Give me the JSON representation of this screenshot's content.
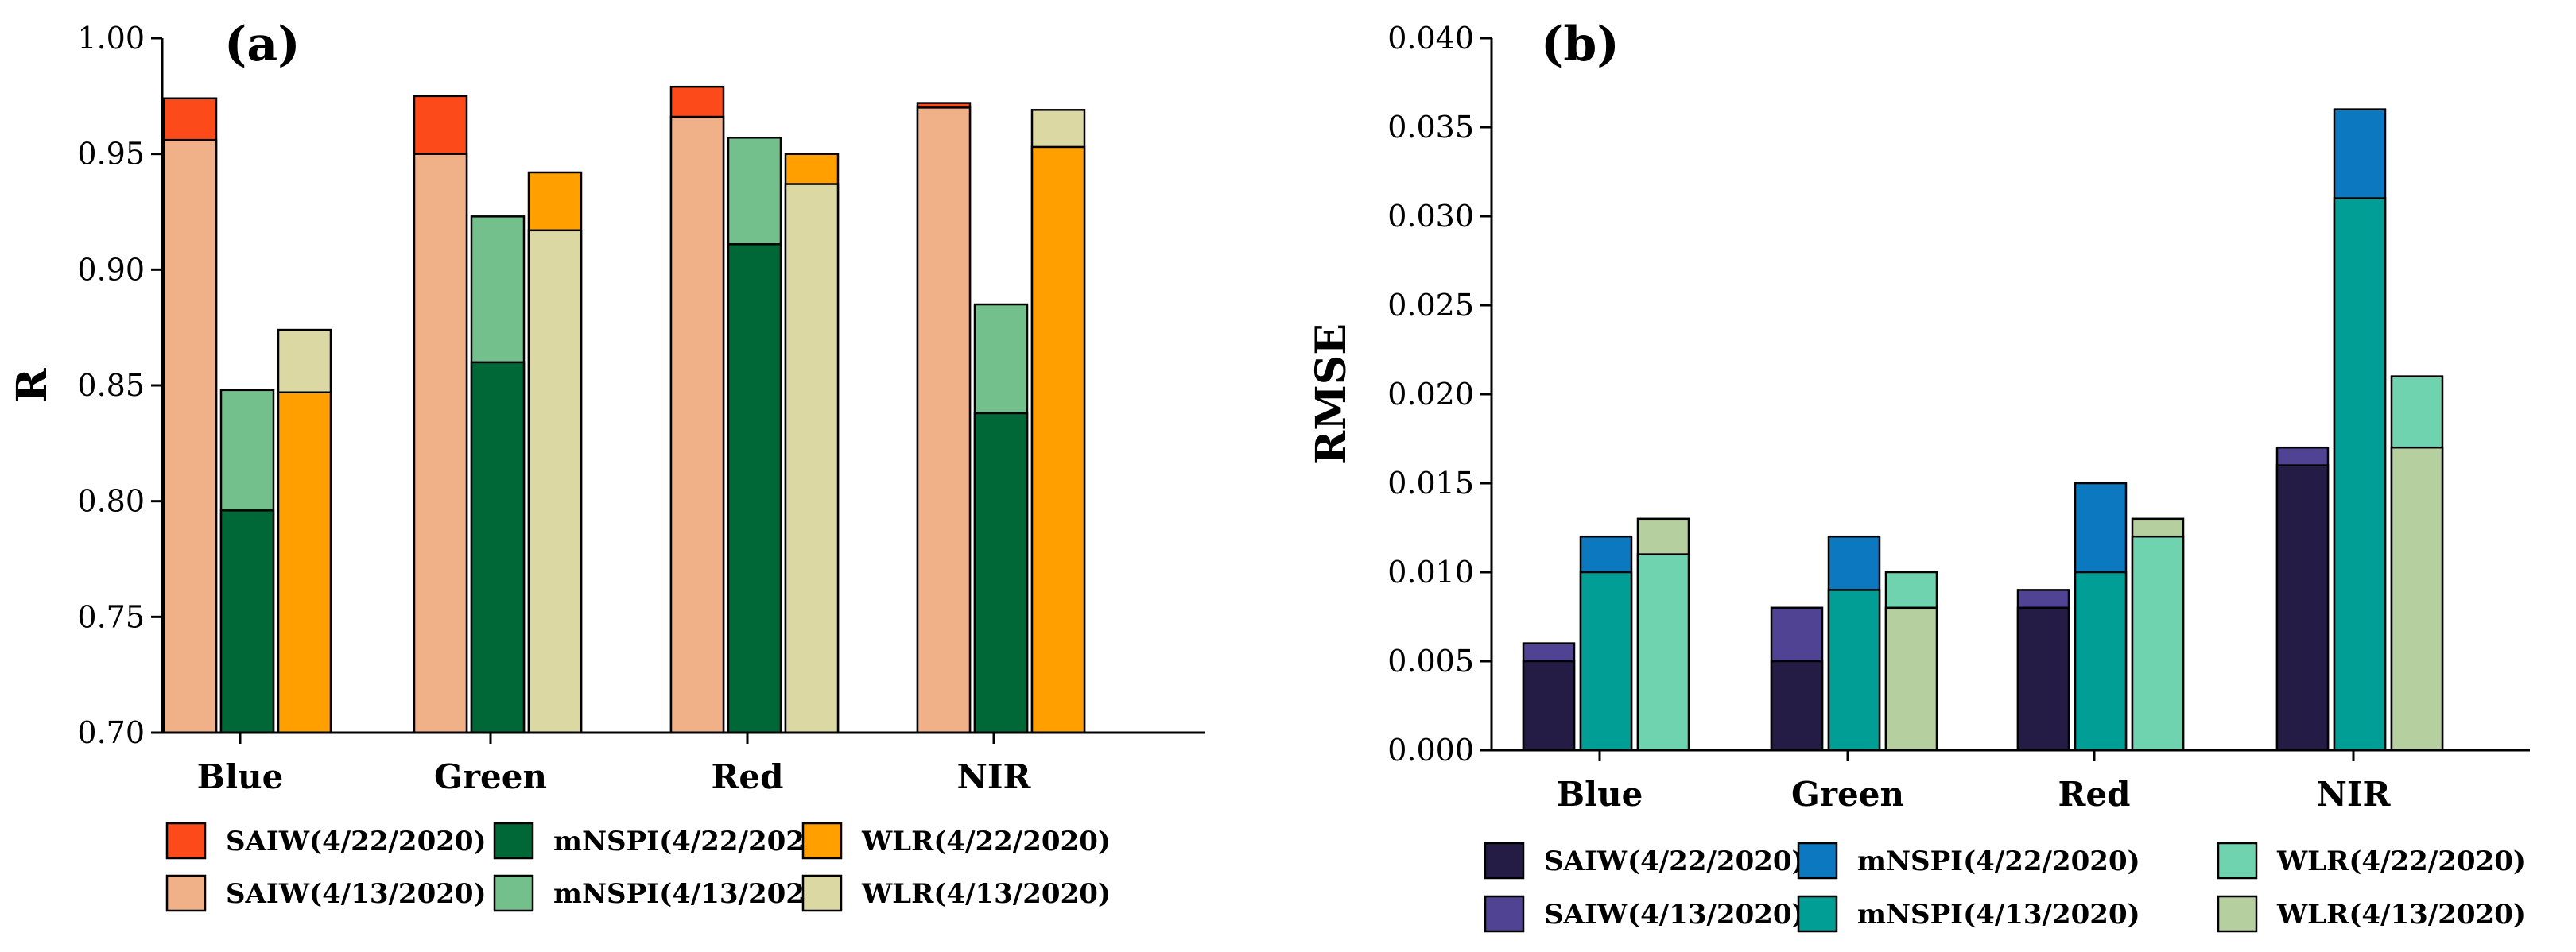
{
  "chart_data": [
    {
      "type": "bar",
      "panel_label": "(a)",
      "ylabel": "R",
      "ylim": [
        0.7,
        1.0
      ],
      "yticks": [
        "0.70",
        "0.75",
        "0.80",
        "0.85",
        "0.90",
        "0.95",
        "1.00"
      ],
      "categories": [
        "Blue",
        "Green",
        "Red",
        "NIR"
      ],
      "stacked_overlay": true,
      "groups": [
        {
          "method": "SAIW",
          "front": {
            "name": "SAIW(4/13/2020)",
            "color": "#f0b088",
            "values": [
              0.956,
              0.95,
              0.966,
              0.97
            ]
          },
          "back": {
            "name": "SAIW(4/22/2020)",
            "color": "#fc4a1a",
            "values": [
              0.974,
              0.975,
              0.979,
              0.972
            ]
          }
        },
        {
          "method": "mNSPI",
          "front": {
            "name": "mNSPI(4/22/2020)",
            "color": "#006837",
            "values": [
              0.796,
              0.86,
              0.911,
              0.838
            ]
          },
          "back": {
            "name": "mNSPI(4/13/2020)",
            "color": "#74c08c",
            "values": [
              0.848,
              0.923,
              0.957,
              0.885
            ]
          }
        },
        {
          "method": "WLR",
          "front": {
            "name": "WLR(4/22/2020)",
            "color": "#ff9f00",
            "values": [
              0.847,
              null,
              null,
              0.953
            ]
          },
          "back": {
            "name": "WLR(4/13/2020)",
            "color": "#dcd8a4",
            "values": [
              0.874,
              null,
              null,
              0.969
            ]
          },
          "note_order": "per-category stacking",
          "stacks": [
            [
              {
                "name": "WLR(4/22/2020)",
                "value": 0.847
              },
              {
                "name": "WLR(4/13/2020)",
                "value": 0.874
              }
            ],
            [
              {
                "name": "WLR(4/13/2020)",
                "value": 0.917
              },
              {
                "name": "WLR(4/22/2020)",
                "value": 0.942
              }
            ],
            [
              {
                "name": "WLR(4/13/2020)",
                "value": 0.937
              },
              {
                "name": "WLR(4/22/2020)",
                "value": 0.95
              }
            ],
            [
              {
                "name": "WLR(4/22/2020)",
                "value": 0.953
              },
              {
                "name": "WLR(4/13/2020)",
                "value": 0.969
              }
            ]
          ]
        }
      ],
      "legend": [
        {
          "name": "SAIW(4/22/2020)",
          "color": "#fc4a1a"
        },
        {
          "name": "mNSPI(4/22/2020)",
          "color": "#006837"
        },
        {
          "name": "WLR(4/22/2020)",
          "color": "#ff9f00"
        },
        {
          "name": "SAIW(4/13/2020)",
          "color": "#f0b088"
        },
        {
          "name": "mNSPI(4/13/2020)",
          "color": "#74c08c"
        },
        {
          "name": "WLR(4/13/2020)",
          "color": "#dcd8a4"
        }
      ]
    },
    {
      "type": "bar",
      "panel_label": "(b)",
      "ylabel": "RMSE",
      "ylim": [
        0.0,
        0.04
      ],
      "yticks": [
        "0.000",
        "0.005",
        "0.010",
        "0.015",
        "0.020",
        "0.025",
        "0.030",
        "0.035",
        "0.040"
      ],
      "categories": [
        "Blue",
        "Green",
        "Red",
        "NIR"
      ],
      "stacked_overlay": true,
      "groups": [
        {
          "method": "SAIW",
          "front": {
            "name": "SAIW(4/22/2020)",
            "color": "#241c45",
            "values": [
              0.005,
              0.005,
              0.008,
              0.016
            ]
          },
          "back": {
            "name": "SAIW(4/13/2020)",
            "color": "#514394",
            "values": [
              0.006,
              0.008,
              0.009,
              0.017
            ]
          }
        },
        {
          "method": "mNSPI",
          "front": {
            "name": "mNSPI(4/13/2020)",
            "color": "#009e94",
            "values": [
              0.01,
              0.009,
              0.01,
              0.031
            ]
          },
          "back": {
            "name": "mNSPI(4/22/2020)",
            "color": "#0b78bf",
            "values": [
              0.012,
              0.012,
              0.015,
              0.036
            ]
          }
        },
        {
          "method": "WLR",
          "stacks": [
            [
              {
                "name": "WLR(4/22/2020)",
                "value": 0.011
              },
              {
                "name": "WLR(4/13/2020)",
                "value": 0.013
              }
            ],
            [
              {
                "name": "WLR(4/13/2020)",
                "value": 0.008
              },
              {
                "name": "WLR(4/22/2020)",
                "value": 0.01
              }
            ],
            [
              {
                "name": "WLR(4/22/2020)",
                "value": 0.012
              },
              {
                "name": "WLR(4/13/2020)",
                "value": 0.013
              }
            ],
            [
              {
                "name": "WLR(4/13/2020)",
                "value": 0.017
              },
              {
                "name": "WLR(4/22/2020)",
                "value": 0.021
              }
            ]
          ]
        }
      ],
      "legend": [
        {
          "name": "SAIW(4/22/2020)",
          "color": "#241c45"
        },
        {
          "name": "mNSPI(4/22/2020)",
          "color": "#0b78bf"
        },
        {
          "name": "WLR(4/22/2020)",
          "color": "#6fd3b0"
        },
        {
          "name": "SAIW(4/13/2020)",
          "color": "#514394"
        },
        {
          "name": "mNSPI(4/13/2020)",
          "color": "#009e94"
        },
        {
          "name": "WLR(4/13/2020)",
          "color": "#b5cf9e"
        }
      ]
    }
  ]
}
